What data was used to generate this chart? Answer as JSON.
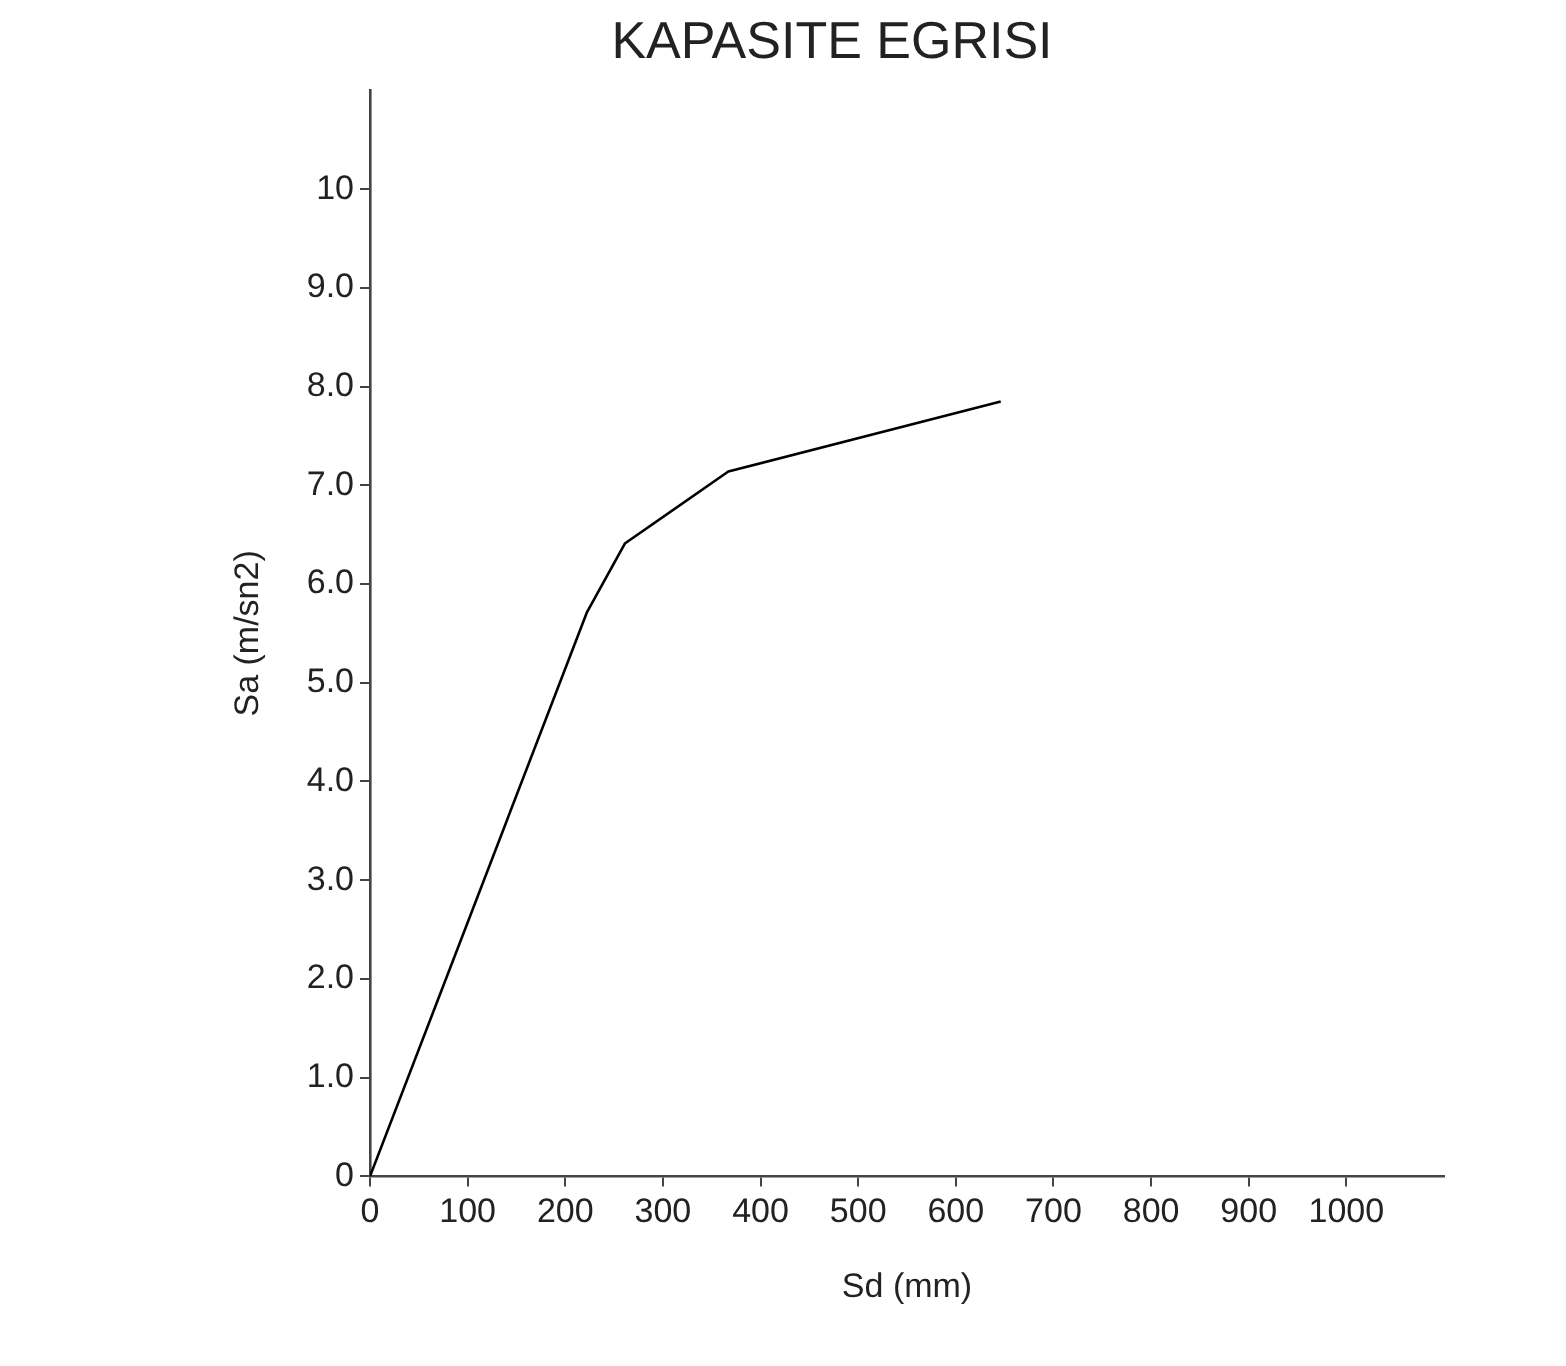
{
  "chart_data": {
    "type": "line",
    "title": "KAPASITE EGRISI",
    "xlabel": "Sd (mm)",
    "ylabel": "Sa (m/sn2)",
    "x": [
      0,
      222,
      261,
      367,
      646
    ],
    "series": [
      {
        "color": "#000000",
        "values": [
          0,
          5.71,
          6.41,
          7.14,
          7.85
        ]
      }
    ],
    "xlim": [
      0,
      1100
    ],
    "xticks": [
      0,
      100,
      200,
      300,
      400,
      500,
      600,
      700,
      800,
      900,
      1000
    ],
    "ylim": [
      0,
      11
    ],
    "yticks": [
      0,
      {
        "value": 1,
        "label": "1.0"
      },
      {
        "value": 2,
        "label": "2.0"
      },
      {
        "value": 3,
        "label": "3.0"
      },
      {
        "value": 4,
        "label": "4.0"
      },
      {
        "value": 5,
        "label": "5.0"
      },
      {
        "value": 6,
        "label": "6.0"
      },
      {
        "value": 7,
        "label": "7.0"
      },
      {
        "value": 8,
        "label": "8.0"
      },
      {
        "value": 9,
        "label": "9.0"
      },
      10
    ],
    "grid": false,
    "marker": "none",
    "line_style": "solid"
  }
}
